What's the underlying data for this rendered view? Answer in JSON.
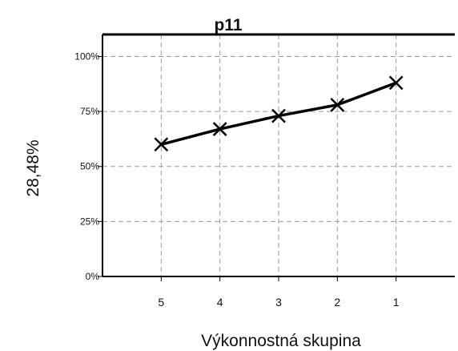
{
  "chart_data": {
    "type": "line",
    "title": "p11",
    "xlabel": "Výkonnostná skupina",
    "ylabel": "28,48%",
    "categories": [
      "5",
      "4",
      "3",
      "2",
      "1"
    ],
    "series": [
      {
        "values": [
          60,
          67,
          73,
          78,
          88
        ]
      }
    ],
    "ylim": [
      0,
      110
    ],
    "yticks": [
      0,
      25,
      50,
      75,
      100
    ],
    "ytick_labels": [
      "0%",
      "25%",
      "50%",
      "75%",
      "100%"
    ],
    "grid": true,
    "marker": "x",
    "colors": {
      "line": "#000000",
      "grid": "#9a9a9a",
      "background": "#ffffff"
    }
  }
}
